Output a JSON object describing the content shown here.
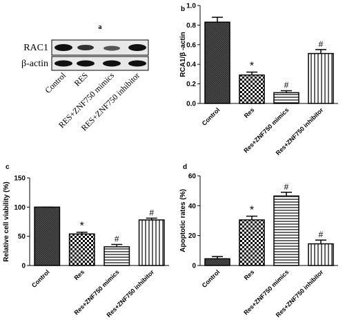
{
  "chart_data": [
    {
      "type": "blot",
      "label": "a",
      "rows": [
        "RAC1",
        "β-actin"
      ],
      "categories": [
        "Control",
        "RES",
        "RES+ZNF750 mimics",
        "RES+ZNF750 inhibitor"
      ]
    },
    {
      "type": "bar",
      "label": "b",
      "ylabel": "RCA1/β -actin",
      "color": "#000000",
      "categories": [
        "Control",
        "Res",
        "Res+ZNF750 mimics",
        "Res+ZNF750 inhibitor"
      ],
      "values": [
        0.83,
        0.29,
        0.11,
        0.51
      ],
      "errors": [
        0.05,
        0.03,
        0.02,
        0.04
      ],
      "annotations": [
        null,
        "*",
        "#",
        "#"
      ],
      "ylim": [
        0,
        1
      ],
      "yticks": [
        {
          "value": 0,
          "label": "0.0"
        },
        0.2,
        0.4,
        0.6,
        0.8,
        {
          "value": 1,
          "label": "1.0"
        }
      ]
    },
    {
      "type": "bar",
      "label": "c",
      "ylabel": "Relative cell viability (%)",
      "color": "#000000",
      "categories": [
        "Control",
        "Res",
        "Res+ZNF750 mimics",
        "Res+ZNF750 inhibitor"
      ],
      "values": [
        100,
        54,
        32,
        78
      ],
      "errors": [
        0,
        3,
        4,
        3
      ],
      "annotations": [
        null,
        "*",
        "#",
        "#"
      ],
      "ylim": [
        0,
        150
      ],
      "yticks": [
        0,
        50,
        100,
        150
      ]
    },
    {
      "type": "bar",
      "label": "d",
      "ylabel": "Apoptotic rates (%)",
      "color": "#000000",
      "categories": [
        "Control",
        "Res",
        "Res+ZNF750 mimics",
        "Res+ZNF750 inhibitor"
      ],
      "values": [
        4.5,
        30.5,
        46.5,
        14.5
      ],
      "errors": [
        1.5,
        2.5,
        2.5,
        2.5
      ],
      "annotations": [
        null,
        "*",
        "#",
        "#"
      ],
      "ylim": [
        0,
        60
      ],
      "yticks": [
        0,
        20,
        40,
        60
      ]
    }
  ]
}
